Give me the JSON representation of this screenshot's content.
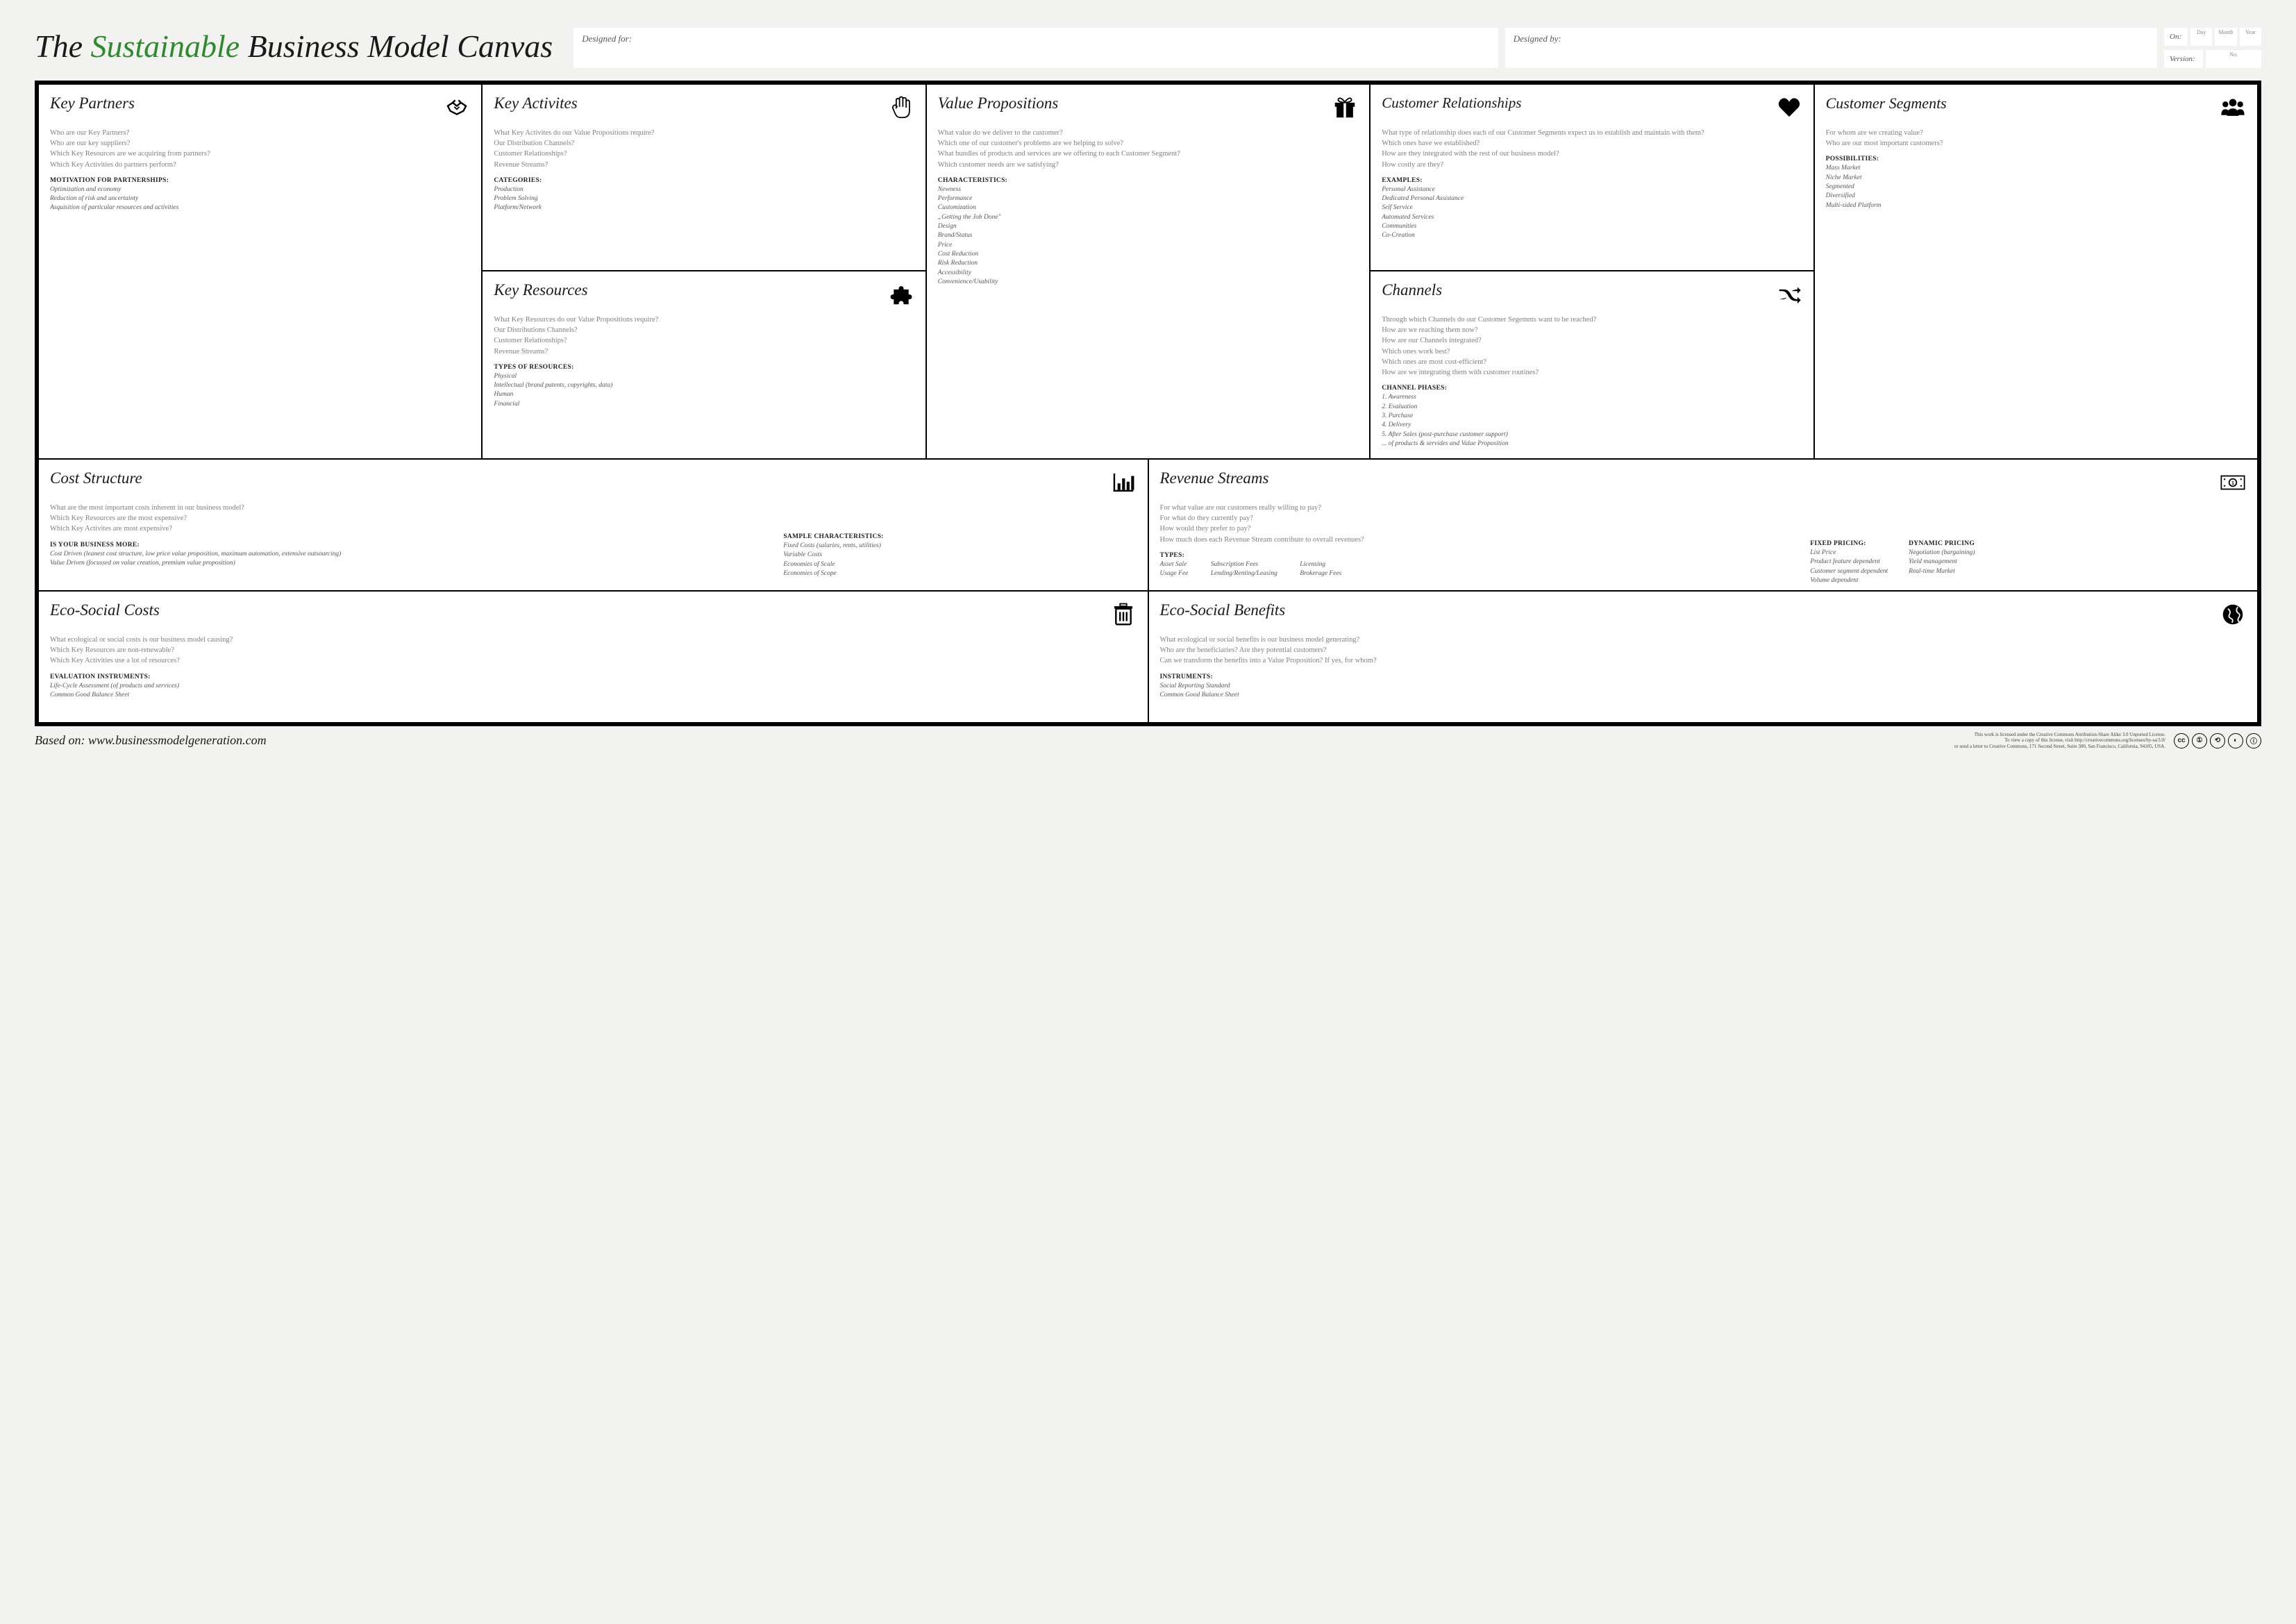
{
  "title_prefix": "The ",
  "title_accent": "Sustainable",
  "title_suffix": " Business Model Canvas",
  "meta": {
    "designed_for": "Designed for:",
    "designed_by": "Designed by:",
    "on": "On:",
    "version": "Version:",
    "day": "Day",
    "month": "Month",
    "year": "Year",
    "no": "No."
  },
  "blocks": {
    "key_partners": {
      "title": "Key Partners",
      "questions": "Who are our Key Partners?\nWho are our key suppliers?\nWhich Key Resources are we acquiring from partners?\nWhich Key Activities do partners perform?",
      "subhead": "MOTIVATION FOR PARTNERSHIPS:",
      "subitems": "Optimization and economy\nReduction of risk and uncertainty\nAsquisition of particular resources and activities"
    },
    "key_activities": {
      "title": "Key Activites",
      "questions": "What Key Activites do our Value Propositions require?\nOur Distribution Channels?\nCustomer Relationships?\nRevenue Streams?",
      "subhead": "CATEGORIES:",
      "subitems": "Production\nProblem Solving\nPlatform/Network"
    },
    "key_resources": {
      "title": "Key Resources",
      "questions": "What Key Resources do our Value Propositions require?\nOur Distributions Channels?\nCustomer Relationships?\nRevenue Streams?",
      "subhead": "TYPES OF RESOURCES:",
      "subitems": "Physical\nIntellectual (brand patents, copyrights, data)\nHuman\nFinancial"
    },
    "value_propositions": {
      "title": "Value Propositions",
      "questions": "What value do we deliver to the customer?\nWhich one of our customer's problems are we helping to solve?\nWhat bundles of products and services are we offering to each Customer Segment?\nWhich customer needs are we satisfying?",
      "subhead": "CHARACTERISTICS:",
      "subitems": "Newness\nPerformance\nCustomization\n„Getting the Job Done\"\nDesign\nBrand/Status\nPrice\nCost Reduction\nRisk Reduction\nAccessibility\nConvenience/Usability"
    },
    "customer_relationships": {
      "title": "Customer Relationships",
      "questions": "What type of relationship does each of our Customer Segments expect us to establish and maintain with them?\nWhich ones have we established?\nHow are they integrated with the rest of our business model?\nHow costly are they?",
      "subhead": "EXAMPLES:",
      "subitems": "Personal Assistance\nDedicated Personal Assistance\nSelf Service\nAutomated Services\nCommunities\nCo-Creation"
    },
    "channels": {
      "title": "Channels",
      "questions": "Through which Channels do our Customer Segemnts want to be reached?\nHow are we reaching them now?\nHow are our Channels integrated?\nWhich ones work best?\nWhich ones are most cost-efficient?\nHow are we integrating them with customer routines?",
      "subhead": "CHANNEL PHASES:",
      "subitems": "1. Awareness\n2. Evaluation\n3. Purchase\n4. Delivery\n5. After Sales (post-purchase customer support)\n... of  products & servides and Value Proposition"
    },
    "customer_segments": {
      "title": "Customer Segments",
      "questions": "For whom are we creating value?\nWho are our most important customers?",
      "subhead": "POSSIBILITIES:",
      "subitems": "Mass Market\nNiche Market\nSegmented\nDiversified\nMulti-sided Platform"
    },
    "cost_structure": {
      "title": "Cost Structure",
      "questions": "What are the most important costs inherent in our business model?\nWhich Key Resources are the most expensive?\nWhich Key Activites are most expensive?",
      "subhead1": "IS YOUR BUSINESS MORE:",
      "subitems1": "Cost Driven (leanest cost structure, low price value proposition, maximum automation, extensive outsourcing)\nValue Driven (focussed on value creation, premium value proposition)",
      "subhead2": "SAMPLE CHARACTERISTICS:",
      "subitems2": "Fixed Costs (salaries, rents, utilities)\nVariable Costs\nEconomies of Scale\nEconomies of Scope"
    },
    "revenue_streams": {
      "title": "Revenue Streams",
      "questions": "For what value are our customers really willing to pay?\nFor what do they currently pay?\nHow would they prefer to pay?\nHow much does each Revenue Stream contribute to overall revenues?",
      "types_head": "TYPES:",
      "types_col1": "Asset Sale\nUsage Fee",
      "types_col2": "Subscription Fees\nLending/Renting/Leasing",
      "types_col3": "Licensing\nBrokerage Fees",
      "fixed_head": "FIXED PRICING:",
      "fixed_items": "List Price\nProduct feature dependent\nCustomer segment dependent\nVolume dependent",
      "dynamic_head": "DYNAMIC PRICING",
      "dynamic_items": "Negotiation (bargaining)\nYield management\nReal-time Market"
    },
    "eco_costs": {
      "title": "Eco-Social Costs",
      "questions": "What ecological or social costs is our business model causing?\nWhich Key Resources are non-renewable?\nWhich Key Activities use a lot of resources?",
      "subhead": "EVALUATION INSTRUMENTS:",
      "subitems": "Life-Cycle Assessment (of products and services)\nCommon Good Balance Sheet"
    },
    "eco_benefits": {
      "title": "Eco-Social Benefits",
      "questions": "What ecological or social benefits is our business model generating?\nWho are the beneficiaries? Are they potential customers?\nCan we transform the benefits into a Value Proposition? If yes, for whom?",
      "subhead": "INSTRUMENTS:",
      "subitems": "Social Reporting Standard\nCommon Good Balance Sheet"
    }
  },
  "footer": {
    "based": "Based on: www.businessmodelgeneration.com",
    "license": "This work is licensed under the Creative Commons Attribution-Share Alike 3.0 Unported License.\nTo view a copy of this license, visit http://creativecommons.org/licenses/by-sa/3.0/\nor send a letter to Creative Commons, 171 Second Street, Suite 300, San Francisco, California, 94105, USA."
  },
  "colors": {
    "background": "#f2f2f0",
    "panel": "#ffffff",
    "border": "#000000",
    "accent": "#2d8a2d",
    "muted_text": "#808080",
    "subitem_text": "#555555"
  }
}
